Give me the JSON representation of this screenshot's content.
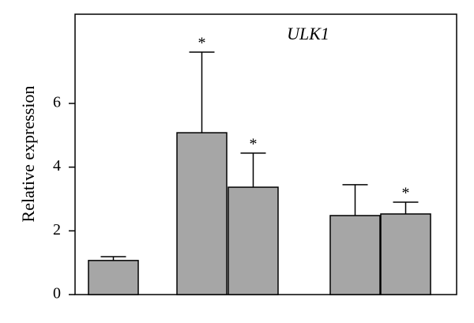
{
  "chart_data": {
    "type": "bar",
    "title": "ULK1",
    "y_label": "Relative expression",
    "categories": [
      null,
      null,
      null,
      null,
      null
    ],
    "values": [
      1.07,
      5.08,
      3.37,
      2.48,
      2.53
    ],
    "errors": [
      0.12,
      2.53,
      1.07,
      0.97,
      0.37
    ],
    "significance": [
      null,
      "*",
      "*",
      null,
      "*"
    ],
    "color": "#a6a6a6",
    "ylim": [
      0,
      8.8
    ],
    "yticks": [
      0,
      2,
      4,
      6
    ],
    "grid": false
  }
}
